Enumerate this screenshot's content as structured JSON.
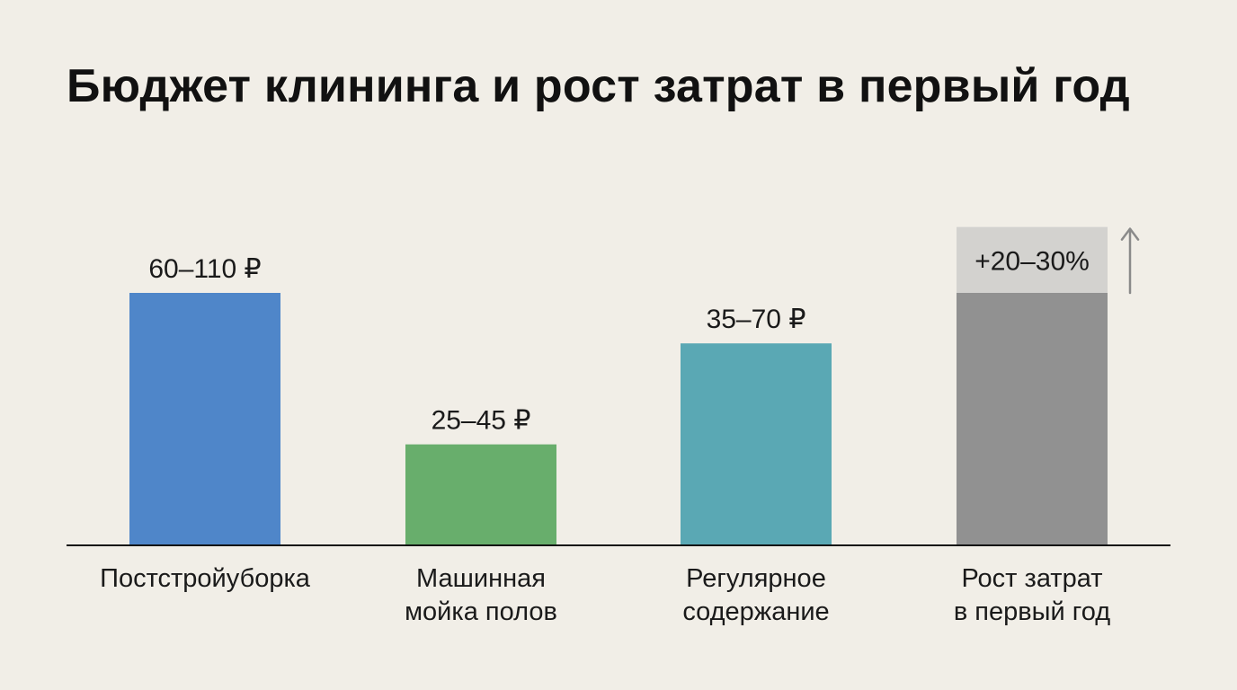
{
  "title": "Бюджет клининга и рост затрат в первый год",
  "chart_data": {
    "type": "bar",
    "title": "Бюджет клининга и рост затрат в первый год",
    "categories": [
      "Постстройуборка",
      "Машинная мойка полов",
      "Регулярное содержание",
      "Рост затрат в первый год"
    ],
    "category_lines": [
      [
        "Постстройуборка"
      ],
      [
        "Машинная",
        "мойка полов"
      ],
      [
        "Регулярное",
        "содержание"
      ],
      [
        "Рост затрат",
        "в первый год"
      ]
    ],
    "bars": [
      {
        "label": "60–110 ₽",
        "value": 100,
        "color": "#4f86c9"
      },
      {
        "label": "25–45 ₽",
        "value": 40,
        "color": "#68ae6c"
      },
      {
        "label": "35–70 ₽",
        "value": 80,
        "color": "#5aa8b4"
      },
      {
        "label": "+20–30%",
        "value": 100,
        "increase": 30,
        "color": "#919191",
        "increase_color": "#d3d2cf",
        "arrow": true
      }
    ],
    "ylim": [
      0,
      140
    ],
    "grid": false,
    "legend": "none"
  }
}
